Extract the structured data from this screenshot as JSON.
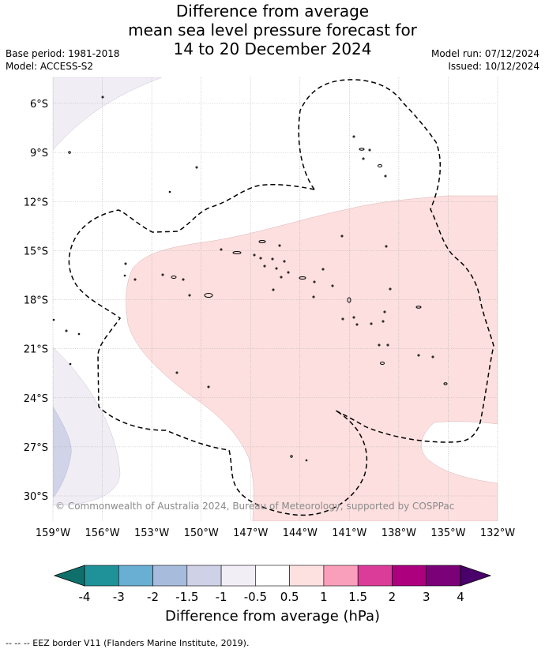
{
  "title": {
    "line1": "Difference from average",
    "line2": "mean sea level pressure forecast for",
    "line3": "14 to 20 December 2024"
  },
  "meta": {
    "base_period": "Base period: 1981-2018",
    "model": "Model: ACCESS-S2",
    "model_run": "Model run: 07/12/2024",
    "issued": "Issued: 10/12/2024"
  },
  "map": {
    "lon_ticks": [
      "159°W",
      "156°W",
      "153°W",
      "150°W",
      "147°W",
      "144°W",
      "141°W",
      "138°W",
      "135°W",
      "132°W"
    ],
    "lat_ticks": [
      "6°S",
      "9°S",
      "12°S",
      "15°S",
      "18°S",
      "21°S",
      "24°S",
      "27°S",
      "30°S"
    ],
    "copyright": "© Commonwealth of Australia 2024, Bureau of Meteorology, supported by COSPPac",
    "colors": {
      "pos_0_5_1": "#fddfdf",
      "neg_0_5_1": "#f1edf5",
      "neg_1_1_5": "#d1d3e8",
      "grid": "#b0b0b0",
      "eez": "#000000"
    }
  },
  "colorbar": {
    "title": "Difference from average (hPa)",
    "tick_labels": [
      "-4",
      "-3",
      "-2",
      "-1.5",
      "-1",
      "-0.5",
      "0.5",
      "1",
      "1.5",
      "2",
      "3",
      "4"
    ],
    "colors": [
      "#0f6f6b",
      "#1f9198",
      "#69aed3",
      "#a7bcdd",
      "#cfd1e6",
      "#f2eef5",
      "#ffffff",
      "#fde0e0",
      "#f99fbb",
      "#dc3c99",
      "#ad007f",
      "#7a0177",
      "#49006a"
    ]
  },
  "footnote": "--  --  -- EEZ border V11 (Flanders Marine Institute, 2019)."
}
